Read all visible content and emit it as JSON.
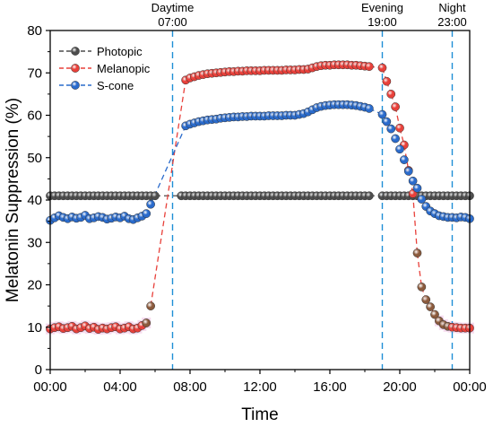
{
  "chart_data": {
    "type": "scatter",
    "xlabel": "Time",
    "ylabel": "Melatonin Suppression (%)",
    "xlim": [
      0,
      24
    ],
    "ylim": [
      0,
      80
    ],
    "x_ticks": [
      0,
      4,
      8,
      12,
      16,
      20,
      24
    ],
    "x_tick_labels": [
      "00:00",
      "04:00",
      "08:00",
      "12:00",
      "16:00",
      "20:00",
      "00:00"
    ],
    "y_ticks": [
      0,
      10,
      20,
      30,
      40,
      50,
      60,
      70,
      80
    ],
    "y_tick_labels": [
      "0",
      "10",
      "20",
      "30",
      "40",
      "50",
      "60",
      "70",
      "80"
    ],
    "grid": false,
    "legend_position": "top-left",
    "annotations": [
      {
        "label": "Daytime",
        "time": "07:00",
        "x": 7
      },
      {
        "label": "Evening",
        "time": "19:00",
        "x": 19
      },
      {
        "label": "Night",
        "time": "23:00",
        "x": 23
      }
    ],
    "series": [
      {
        "name": "Photopic",
        "color": "#4d4d4d",
        "points": [
          [
            0,
            41
          ],
          [
            0.25,
            41
          ],
          [
            0.5,
            41
          ],
          [
            0.75,
            41
          ],
          [
            1,
            41
          ],
          [
            1.25,
            41
          ],
          [
            1.5,
            41
          ],
          [
            1.75,
            41
          ],
          [
            2,
            41
          ],
          [
            2.25,
            41
          ],
          [
            2.5,
            41
          ],
          [
            2.75,
            41
          ],
          [
            3,
            41
          ],
          [
            3.25,
            41
          ],
          [
            3.5,
            41
          ],
          [
            3.75,
            41
          ],
          [
            4,
            41
          ],
          [
            4.25,
            41
          ],
          [
            4.5,
            41
          ],
          [
            4.75,
            41
          ],
          [
            5,
            41
          ],
          [
            5.25,
            41
          ],
          [
            5.5,
            41
          ],
          [
            5.75,
            41
          ],
          [
            6,
            41
          ],
          [
            7.5,
            41
          ],
          [
            7.75,
            41
          ],
          [
            8,
            41
          ],
          [
            8.25,
            41
          ],
          [
            8.5,
            41
          ],
          [
            8.75,
            41
          ],
          [
            9,
            41
          ],
          [
            9.25,
            41
          ],
          [
            9.5,
            41
          ],
          [
            9.75,
            41
          ],
          [
            10,
            41
          ],
          [
            10.25,
            41
          ],
          [
            10.5,
            41
          ],
          [
            10.75,
            41
          ],
          [
            11,
            41
          ],
          [
            11.25,
            41
          ],
          [
            11.5,
            41
          ],
          [
            11.75,
            41
          ],
          [
            12,
            41
          ],
          [
            12.25,
            41
          ],
          [
            12.5,
            41
          ],
          [
            12.75,
            41
          ],
          [
            13,
            41
          ],
          [
            13.25,
            41
          ],
          [
            13.5,
            41
          ],
          [
            13.75,
            41
          ],
          [
            14,
            41
          ],
          [
            14.25,
            41
          ],
          [
            14.5,
            41
          ],
          [
            14.75,
            41
          ],
          [
            15,
            41
          ],
          [
            15.25,
            41
          ],
          [
            15.5,
            41
          ],
          [
            15.75,
            41
          ],
          [
            16,
            41
          ],
          [
            16.25,
            41
          ],
          [
            16.5,
            41
          ],
          [
            16.75,
            41
          ],
          [
            17,
            41
          ],
          [
            17.25,
            41
          ],
          [
            17.5,
            41
          ],
          [
            17.75,
            41
          ],
          [
            18,
            41
          ],
          [
            18.25,
            41
          ],
          [
            19,
            41
          ],
          [
            19.25,
            41
          ],
          [
            19.5,
            41
          ],
          [
            19.75,
            41
          ],
          [
            20,
            41
          ],
          [
            20.25,
            41
          ],
          [
            20.5,
            41
          ],
          [
            20.75,
            41
          ],
          [
            21,
            41
          ],
          [
            21.25,
            41
          ],
          [
            21.5,
            41
          ],
          [
            21.75,
            41
          ],
          [
            22,
            41
          ],
          [
            22.25,
            41
          ],
          [
            22.5,
            41
          ],
          [
            22.75,
            41
          ],
          [
            23,
            41
          ],
          [
            23.25,
            41
          ],
          [
            23.5,
            41
          ],
          [
            23.75,
            41
          ],
          [
            24,
            41
          ]
        ]
      },
      {
        "name": "Melanopic",
        "color": "#e8403a",
        "points": [
          [
            0,
            9.6
          ],
          [
            0.25,
            9.9
          ],
          [
            0.5,
            10.1
          ],
          [
            0.75,
            9.7
          ],
          [
            1,
            9.9
          ],
          [
            1.25,
            10.2
          ],
          [
            1.5,
            9.6
          ],
          [
            1.75,
            9.9
          ],
          [
            2,
            10.3
          ],
          [
            2.25,
            9.7
          ],
          [
            2.5,
            10
          ],
          [
            2.75,
            9.5
          ],
          [
            3,
            9.8
          ],
          [
            3.25,
            9.6
          ],
          [
            3.5,
            9.9
          ],
          [
            3.75,
            10.1
          ],
          [
            4,
            9.6
          ],
          [
            4.25,
            9.8
          ],
          [
            4.5,
            10.1
          ],
          [
            4.75,
            9.6
          ],
          [
            5,
            9.8
          ],
          [
            5.25,
            10.4
          ],
          [
            5.5,
            11
          ],
          [
            5.75,
            15
          ],
          [
            7.75,
            68.3
          ],
          [
            8,
            68.8
          ],
          [
            8.25,
            69.1
          ],
          [
            8.5,
            69.4
          ],
          [
            8.75,
            69.6
          ],
          [
            9,
            69.8
          ],
          [
            9.25,
            69.9
          ],
          [
            9.5,
            70
          ],
          [
            9.75,
            70.1
          ],
          [
            10,
            70.2
          ],
          [
            10.25,
            70.3
          ],
          [
            10.5,
            70.3
          ],
          [
            10.75,
            70.4
          ],
          [
            11,
            70.4
          ],
          [
            11.25,
            70.5
          ],
          [
            11.5,
            70.5
          ],
          [
            11.75,
            70.5
          ],
          [
            12,
            70.5
          ],
          [
            12.25,
            70.6
          ],
          [
            12.5,
            70.6
          ],
          [
            12.75,
            70.6
          ],
          [
            13,
            70.6
          ],
          [
            13.25,
            70.6
          ],
          [
            13.5,
            70.7
          ],
          [
            13.75,
            70.7
          ],
          [
            14,
            70.7
          ],
          [
            14.25,
            70.8
          ],
          [
            14.5,
            70.8
          ],
          [
            14.75,
            70.9
          ],
          [
            15,
            71.2
          ],
          [
            15.25,
            71.5
          ],
          [
            15.5,
            71.7
          ],
          [
            15.75,
            71.8
          ],
          [
            16,
            71.8
          ],
          [
            16.25,
            71.9
          ],
          [
            16.5,
            71.9
          ],
          [
            16.75,
            71.9
          ],
          [
            17,
            71.9
          ],
          [
            17.25,
            71.8
          ],
          [
            17.5,
            71.8
          ],
          [
            17.75,
            71.7
          ],
          [
            18,
            71.6
          ],
          [
            18.25,
            71.5
          ],
          [
            19,
            71.2
          ],
          [
            19.25,
            68
          ],
          [
            19.5,
            65
          ],
          [
            19.75,
            62
          ],
          [
            20,
            57
          ],
          [
            20.25,
            53
          ],
          [
            20.5,
            47
          ],
          [
            20.75,
            41.5
          ],
          [
            21,
            27.5
          ],
          [
            21.25,
            19.5
          ],
          [
            21.5,
            16.5
          ],
          [
            21.75,
            14.8
          ],
          [
            22,
            13
          ],
          [
            22.25,
            11.5
          ],
          [
            22.5,
            10.6
          ],
          [
            22.75,
            10.2
          ],
          [
            23,
            10
          ],
          [
            23.25,
            9.9
          ],
          [
            23.5,
            9.8
          ],
          [
            23.75,
            9.8
          ],
          [
            24,
            9.8
          ]
        ]
      },
      {
        "name": "S-cone",
        "color": "#2a6bcc",
        "points": [
          [
            0,
            35.2
          ],
          [
            0.25,
            35.8
          ],
          [
            0.5,
            36.3
          ],
          [
            0.75,
            35.9
          ],
          [
            1,
            35.6
          ],
          [
            1.25,
            36
          ],
          [
            1.5,
            35.7
          ],
          [
            1.75,
            35.9
          ],
          [
            2,
            36.4
          ],
          [
            2.25,
            35.6
          ],
          [
            2.5,
            35.8
          ],
          [
            2.75,
            36.1
          ],
          [
            3,
            35.9
          ],
          [
            3.25,
            35.5
          ],
          [
            3.5,
            35.7
          ],
          [
            3.75,
            36
          ],
          [
            4,
            35.8
          ],
          [
            4.25,
            36.2
          ],
          [
            4.5,
            35.6
          ],
          [
            4.75,
            35.4
          ],
          [
            5,
            35.8
          ],
          [
            5.25,
            36.2
          ],
          [
            5.5,
            36.8
          ],
          [
            5.75,
            39
          ],
          [
            7.75,
            57.5
          ],
          [
            8,
            57.9
          ],
          [
            8.25,
            58.2
          ],
          [
            8.5,
            58.5
          ],
          [
            8.75,
            58.7
          ],
          [
            9,
            58.9
          ],
          [
            9.25,
            59
          ],
          [
            9.5,
            59.1
          ],
          [
            9.75,
            59.3
          ],
          [
            10,
            59.4
          ],
          [
            10.25,
            59.5
          ],
          [
            10.5,
            59.6
          ],
          [
            10.75,
            59.6
          ],
          [
            11,
            59.7
          ],
          [
            11.25,
            59.7
          ],
          [
            11.5,
            59.8
          ],
          [
            11.75,
            59.8
          ],
          [
            12,
            59.8
          ],
          [
            12.25,
            59.8
          ],
          [
            12.5,
            59.9
          ],
          [
            12.75,
            59.9
          ],
          [
            13,
            59.9
          ],
          [
            13.25,
            59.9
          ],
          [
            13.5,
            60
          ],
          [
            13.75,
            60
          ],
          [
            14,
            60
          ],
          [
            14.25,
            60.2
          ],
          [
            14.5,
            60.4
          ],
          [
            14.75,
            60.8
          ],
          [
            15,
            61.3
          ],
          [
            15.25,
            61.8
          ],
          [
            15.5,
            62.1
          ],
          [
            15.75,
            62.3
          ],
          [
            16,
            62.4
          ],
          [
            16.25,
            62.5
          ],
          [
            16.5,
            62.5
          ],
          [
            16.75,
            62.5
          ],
          [
            17,
            62.5
          ],
          [
            17.25,
            62.4
          ],
          [
            17.5,
            62.3
          ],
          [
            17.75,
            62.1
          ],
          [
            18,
            61.9
          ],
          [
            18.25,
            61.6
          ],
          [
            19,
            60.2
          ],
          [
            19.25,
            58.5
          ],
          [
            19.5,
            56.8
          ],
          [
            19.75,
            54.5
          ],
          [
            20,
            52
          ],
          [
            20.25,
            49.5
          ],
          [
            20.5,
            46.8
          ],
          [
            20.75,
            44.5
          ],
          [
            21,
            42.8
          ],
          [
            21.25,
            40.2
          ],
          [
            21.5,
            38.5
          ],
          [
            21.75,
            37.4
          ],
          [
            22,
            36.8
          ],
          [
            22.25,
            36.3
          ],
          [
            22.5,
            36.1
          ],
          [
            22.75,
            35.9
          ],
          [
            23,
            35.9
          ],
          [
            23.25,
            35.8
          ],
          [
            23.5,
            36
          ],
          [
            23.75,
            35.9
          ],
          [
            24,
            35.6
          ]
        ]
      }
    ]
  }
}
